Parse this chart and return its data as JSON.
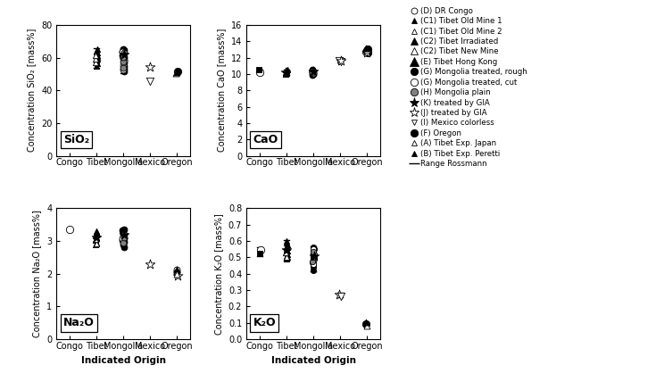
{
  "categories": [
    "Congo",
    "Tibet",
    "Mongolia",
    "Mexico",
    "Oregon"
  ],
  "sio2": {
    "ylabel": "Concentration SiO₂ [mass%]",
    "ylim": [
      0,
      80
    ],
    "yticks": [
      0,
      20,
      40,
      60,
      80
    ],
    "label": "SiO₂"
  },
  "cao": {
    "ylabel": "Concentration CaO [mass%]",
    "ylim": [
      0,
      16
    ],
    "yticks": [
      0,
      2,
      4,
      6,
      8,
      10,
      12,
      14,
      16
    ],
    "label": "CaO"
  },
  "na2o": {
    "ylabel": "Concentration Na₂O [mass%]",
    "ylim": [
      0,
      4
    ],
    "yticks": [
      0,
      1,
      2,
      3,
      4
    ],
    "label": "Na₂O"
  },
  "k2o": {
    "ylabel": "Concentration K₂O [mass%]",
    "ylim": [
      0.0,
      0.8
    ],
    "yticks": [
      0.0,
      0.1,
      0.2,
      0.3,
      0.4,
      0.5,
      0.6,
      0.7,
      0.8
    ],
    "label": "K₂O"
  },
  "sio2_points": [
    [
      2,
      [
        55.0,
        56.2,
        57.3,
        57.8,
        58.4,
        59.0,
        59.8,
        60.5,
        61.2,
        62.0,
        62.8,
        63.5,
        64.2,
        65.0
      ],
      "^",
      "black",
      "black",
      4.5
    ],
    [
      2,
      [
        56.8,
        59.2,
        61.5
      ],
      "^",
      "white",
      "black",
      4.5
    ],
    [
      3,
      [
        51.5,
        53.0,
        55.0,
        57.0,
        58.5,
        59.5,
        60.5,
        61.5,
        62.5,
        63.5,
        64.5,
        65.0
      ],
      "o",
      "black",
      "black",
      5
    ],
    [
      3,
      [
        52.5,
        55.5,
        58.0,
        60.0,
        62.0,
        63.8
      ],
      "o",
      "white",
      "black",
      5
    ],
    [
      3,
      [
        54.0,
        57.5,
        60.2,
        62.8
      ],
      "o",
      "gray",
      "black",
      5
    ],
    [
      3,
      [
        62.0
      ],
      "*",
      "black",
      "black",
      8
    ],
    [
      4,
      [
        54.5
      ],
      "*",
      "white",
      "black",
      8
    ],
    [
      4,
      [
        45.5
      ],
      "v",
      "white",
      "black",
      6
    ],
    [
      5,
      [
        51.5
      ],
      "o",
      "black",
      "black",
      6
    ],
    [
      5,
      [
        50.2
      ],
      "^",
      "white",
      "black",
      5
    ],
    [
      5,
      [
        50.8
      ],
      "^",
      "black",
      "black",
      5
    ]
  ],
  "sio2_ranges": [
    [
      2,
      54.0,
      65.5
    ],
    [
      3,
      50.5,
      65.5
    ]
  ],
  "cao_points": [
    [
      1,
      [
        10.2
      ],
      "o",
      "white",
      "black",
      6
    ],
    [
      1,
      [
        10.5
      ],
      "s",
      "black",
      "black",
      5
    ],
    [
      2,
      [
        10.0,
        10.1,
        10.2,
        10.3,
        10.4,
        10.5
      ],
      "^",
      "black",
      "black",
      4.5
    ],
    [
      2,
      [
        10.15
      ],
      "^",
      "white",
      "black",
      4.5
    ],
    [
      2,
      [
        10.25
      ],
      "*",
      "black",
      "black",
      8
    ],
    [
      3,
      [
        9.9,
        10.0,
        10.1,
        10.2,
        10.3,
        10.4,
        10.5
      ],
      "o",
      "black",
      "black",
      5
    ],
    [
      3,
      [
        10.1,
        10.3
      ],
      "o",
      "white",
      "black",
      5
    ],
    [
      3,
      [
        10.2
      ],
      "o",
      "gray",
      "black",
      5
    ],
    [
      3,
      [
        10.3
      ],
      "*",
      "black",
      "black",
      8
    ],
    [
      4,
      [
        11.5,
        11.65
      ],
      "v",
      "white",
      "black",
      6
    ],
    [
      4,
      [
        11.6
      ],
      "*",
      "white",
      "black",
      8
    ],
    [
      5,
      [
        12.75
      ],
      "o",
      "white",
      "black",
      6
    ],
    [
      5,
      [
        12.55,
        12.85,
        13.05
      ],
      "o",
      "black",
      "black",
      6
    ],
    [
      5,
      [
        12.65
      ],
      "*",
      "white",
      "black",
      8
    ],
    [
      5,
      [
        12.95
      ],
      "^",
      "white",
      "black",
      5
    ],
    [
      5,
      [
        13.12
      ],
      "^",
      "black",
      "black",
      5
    ]
  ],
  "cao_ranges": [
    [
      1,
      9.95,
      10.55
    ],
    [
      2,
      9.9,
      10.55
    ],
    [
      3,
      9.85,
      10.55
    ],
    [
      4,
      11.45,
      11.7
    ],
    [
      5,
      12.5,
      13.15
    ]
  ],
  "na2o_points": [
    [
      1,
      [
        3.35
      ],
      "o",
      "white",
      "black",
      6
    ],
    [
      2,
      [
        2.88,
        2.95,
        3.02,
        3.08,
        3.12,
        3.17,
        3.22,
        3.27,
        3.3
      ],
      "^",
      "black",
      "black",
      4.5
    ],
    [
      2,
      [
        2.92,
        3.05
      ],
      "^",
      "white",
      "black",
      4.5
    ],
    [
      2,
      [
        3.1
      ],
      "*",
      "black",
      "black",
      8
    ],
    [
      3,
      [
        2.82,
        2.9,
        2.97,
        3.03,
        3.09,
        3.15,
        3.21,
        3.27,
        3.32,
        3.36
      ],
      "o",
      "black",
      "black",
      5
    ],
    [
      3,
      [
        3.08,
        3.18
      ],
      "o",
      "white",
      "black",
      5
    ],
    [
      3,
      [
        2.95,
        3.12
      ],
      "o",
      "gray",
      "black",
      5
    ],
    [
      3,
      [
        3.2
      ],
      "*",
      "black",
      "black",
      8
    ],
    [
      4,
      [
        2.3
      ],
      "*",
      "white",
      "black",
      8
    ],
    [
      5,
      [
        2.08,
        2.13
      ],
      "o",
      "white",
      "black",
      5
    ],
    [
      5,
      [
        2.05
      ],
      "o",
      "gray",
      "black",
      5
    ],
    [
      5,
      [
        2.12
      ],
      "^",
      "black",
      "black",
      5
    ],
    [
      5,
      [
        1.95
      ],
      "*",
      "white",
      "black",
      8
    ],
    [
      5,
      [
        2.0
      ],
      "^",
      "white",
      "black",
      5
    ]
  ],
  "k2o_points": [
    [
      1,
      [
        0.545
      ],
      "o",
      "white",
      "black",
      6
    ],
    [
      1,
      [
        0.525
      ],
      "s",
      "black",
      "black",
      5
    ],
    [
      2,
      [
        0.49,
        0.5,
        0.51,
        0.52,
        0.53,
        0.54,
        0.55,
        0.56,
        0.57,
        0.58,
        0.59,
        0.6
      ],
      "^",
      "black",
      "black",
      4.5
    ],
    [
      2,
      [
        0.5,
        0.53,
        0.56
      ],
      "^",
      "white",
      "black",
      4.5
    ],
    [
      2,
      [
        0.545
      ],
      "*",
      "black",
      "black",
      8
    ],
    [
      3,
      [
        0.42,
        0.44,
        0.46,
        0.47,
        0.48,
        0.49,
        0.5,
        0.51,
        0.52,
        0.53,
        0.54,
        0.55,
        0.56
      ],
      "o",
      "black",
      "black",
      4.5
    ],
    [
      3,
      [
        0.46,
        0.49,
        0.52,
        0.55
      ],
      "o",
      "white",
      "black",
      4.5
    ],
    [
      3,
      [
        0.475,
        0.505,
        0.535
      ],
      "o",
      "gray",
      "black",
      4.5
    ],
    [
      3,
      [
        0.51
      ],
      "*",
      "black",
      "black",
      8
    ],
    [
      4,
      [
        0.275
      ],
      "*",
      "white",
      "black",
      8
    ],
    [
      4,
      [
        0.265
      ],
      "v",
      "white",
      "black",
      6
    ],
    [
      5,
      [
        0.095
      ],
      "o",
      "black",
      "black",
      6
    ],
    [
      5,
      [
        0.082
      ],
      "^",
      "white",
      "black",
      5
    ],
    [
      5,
      [
        0.105
      ],
      "^",
      "black",
      "black",
      5
    ]
  ],
  "k2o_ranges": [
    [
      1,
      0.51,
      0.56
    ],
    [
      2,
      0.48,
      0.605
    ],
    [
      3,
      0.415,
      0.565
    ],
    [
      4,
      0.255,
      0.285
    ]
  ],
  "legend_entries": [
    {
      "label": "(D) DR Congo",
      "marker": "o",
      "fc": "white",
      "ec": "black",
      "ms": 5
    },
    {
      "label": "(C1) Tibet Old Mine 1",
      "marker": "^",
      "fc": "black",
      "ec": "black",
      "ms": 5
    },
    {
      "label": "(C1) Tibet Old Mine 2",
      "marker": "^",
      "fc": "white",
      "ec": "black",
      "ms": 5
    },
    {
      "label": "(C2) Tibet Irradiated",
      "marker": "^",
      "fc": "black",
      "ec": "black",
      "ms": 6
    },
    {
      "label": "(C2) Tibet New Mine",
      "marker": "^",
      "fc": "white",
      "ec": "black",
      "ms": 6
    },
    {
      "label": "(E) Tibet Hong Kong",
      "marker": "^",
      "fc": "black",
      "ec": "black",
      "ms": 7
    },
    {
      "label": "(G) Mongolia treated, rough",
      "marker": "o",
      "fc": "black",
      "ec": "black",
      "ms": 6
    },
    {
      "label": "(G) Mongolia treated, cut",
      "marker": "o",
      "fc": "white",
      "ec": "black",
      "ms": 6
    },
    {
      "label": "(H) Mongolia plain",
      "marker": "o",
      "fc": "gray",
      "ec": "black",
      "ms": 6
    },
    {
      "label": "(K) treated by GIA",
      "marker": "*",
      "fc": "black",
      "ec": "black",
      "ms": 8
    },
    {
      "label": "(J) treated by GIA",
      "marker": "*",
      "fc": "white",
      "ec": "black",
      "ms": 8
    },
    {
      "label": "(I) Mexico colorless",
      "marker": "v",
      "fc": "white",
      "ec": "black",
      "ms": 5
    },
    {
      "label": "(F) Oregon",
      "marker": "o",
      "fc": "black",
      "ec": "black",
      "ms": 6
    },
    {
      "label": "(A) Tibet Exp. Japan",
      "marker": "^",
      "fc": "white",
      "ec": "black",
      "ms": 5
    },
    {
      "label": "(B) Tibet Exp. Peretti",
      "marker": "^",
      "fc": "black",
      "ec": "black",
      "ms": 5
    },
    {
      "label": "Range Rossmann",
      "marker": "_",
      "fc": "black",
      "ec": "black",
      "ms": 8
    }
  ]
}
